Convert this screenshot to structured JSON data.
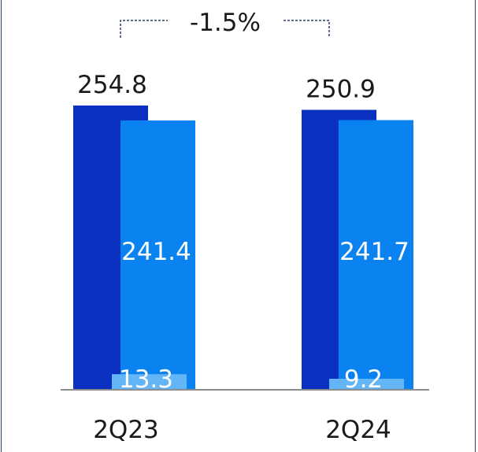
{
  "chart_data": {
    "type": "bar",
    "categories": [
      "2Q23",
      "2Q24"
    ],
    "totals": [
      254.8,
      250.9
    ],
    "series": [
      {
        "values": [
          254.8,
          250.9
        ],
        "color": "#0a30bf"
      },
      {
        "values": [
          241.4,
          241.7
        ],
        "color": "#0a82f0"
      },
      {
        "values": [
          13.3,
          9.2
        ],
        "color": "#64b5f6"
      }
    ],
    "total_labels": [
      "254.8",
      "250.9"
    ],
    "mid_labels": [
      "241.4",
      "241.7"
    ],
    "low_labels": [
      "13.3",
      "9.2"
    ],
    "change_label": "-1.5%",
    "ylim": [
      0,
      254.8
    ],
    "colors": {
      "axis": "#8c8c8c",
      "bracket": "#2a3f6e",
      "text": "#1a1a1a",
      "inner_text": "#ffffff"
    }
  }
}
